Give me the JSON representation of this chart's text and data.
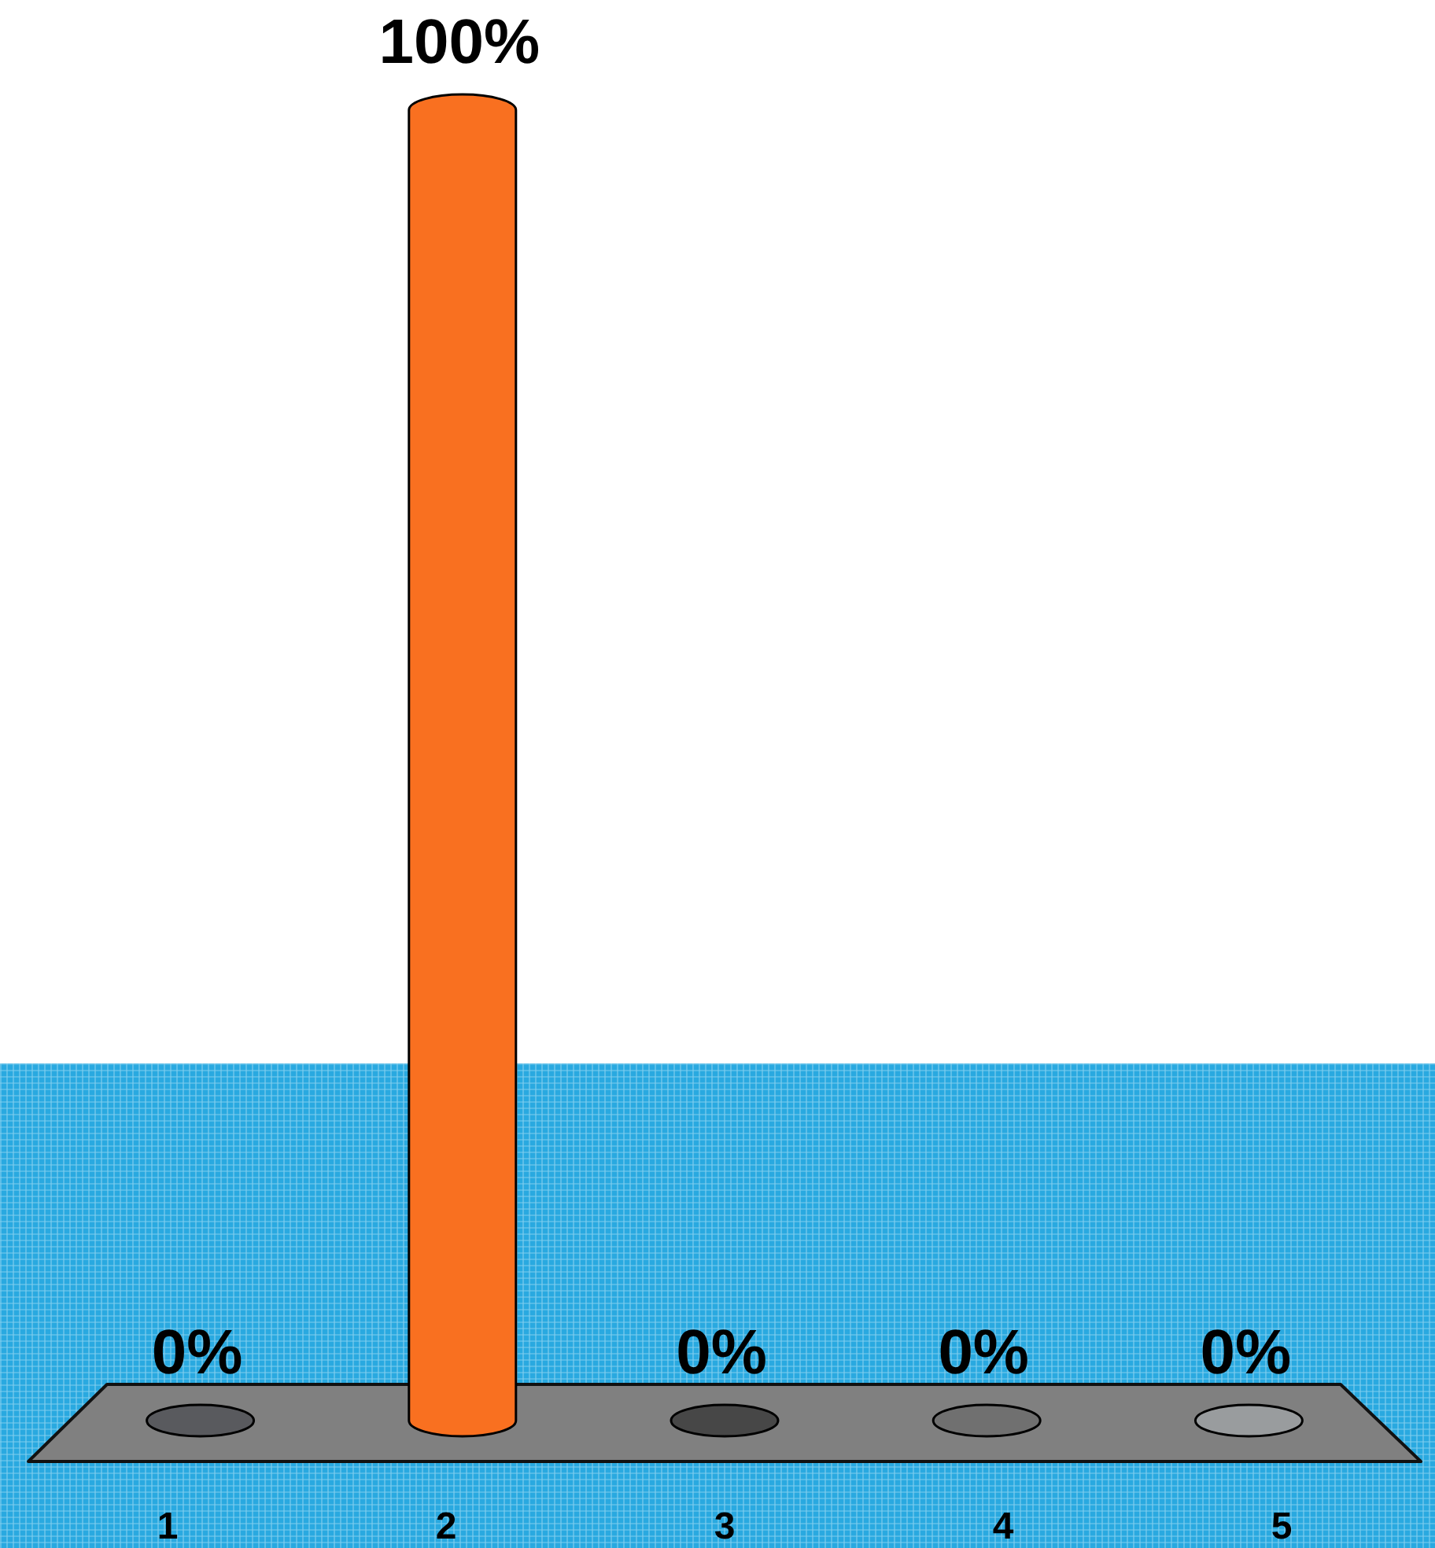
{
  "chart_data": {
    "type": "bar",
    "categories": [
      "1",
      "2",
      "3",
      "4",
      "5"
    ],
    "values": [
      0,
      100,
      0,
      0,
      0
    ],
    "colors": [
      "#595a5e",
      "#f97020",
      "#474747",
      "#707070",
      "#999c9e"
    ],
    "value_labels": [
      "0%",
      "100%",
      "0%",
      "0%",
      "0%"
    ]
  }
}
